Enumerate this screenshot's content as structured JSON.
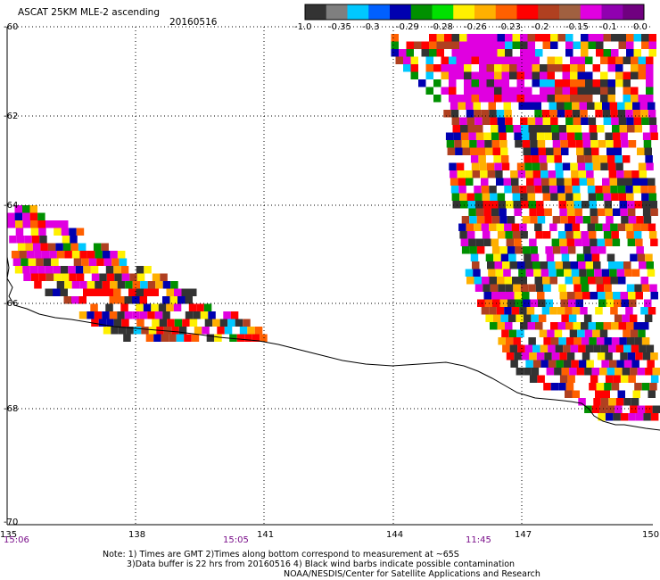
{
  "header": {
    "title": "ASCAT 25KM MLE-2 ascending",
    "date": "20160516"
  },
  "colorbar": {
    "colors": [
      "#333333",
      "#7f7f7f",
      "#00c8ff",
      "#0060ff",
      "#0000b0",
      "#009000",
      "#00e000",
      "#fff000",
      "#ffb000",
      "#ff6000",
      "#ff0000",
      "#b04020",
      "#a06040",
      "#e000e0",
      "#9000b0",
      "#700080"
    ],
    "labels": [
      "-1.0",
      "-0.35",
      "-0.3",
      "-0.29",
      "-0.28",
      "-0.26",
      "-0.23",
      "-0.2",
      "-0.15",
      "-0.1",
      "0.0"
    ]
  },
  "map": {
    "lat_labels": [
      "-60",
      "-62",
      "-64",
      "-66",
      "-68",
      "-70"
    ],
    "lon_labels": [
      "135",
      "138",
      "141",
      "144",
      "147",
      "150"
    ],
    "time_labels": [
      "15:06",
      "15:05",
      "11:45"
    ]
  },
  "footer": {
    "line1": "Note: 1) Times are GMT 2)Times along bottom correspond to measurement at ~65S",
    "line2": "3)Data buffer is 22 hrs from 20160516 4) Black wind barbs indicate possible contamination",
    "line3": "NOAA/NESDIS/Center for Satellite Applications and Research"
  }
}
